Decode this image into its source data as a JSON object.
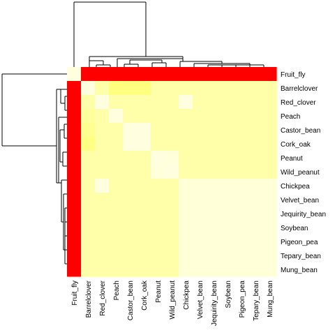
{
  "chart_data": {
    "type": "heatmap",
    "rows": [
      "Fruit_fly",
      "Barrelclover",
      "Red_clover",
      "Peach",
      "Castor_bean",
      "Cork_oak",
      "Peanut",
      "Wild_peanut",
      "Chickpea",
      "Velvet_bean",
      "Jequirity_bean",
      "Soybean",
      "Pigeon_pea",
      "Tepary_bean",
      "Mung_bean"
    ],
    "columns": [
      "Fruit_fly",
      "Barrelclover",
      "Red_clover",
      "Peach",
      "Castor_bean",
      "Cork_oak",
      "Peanut",
      "Wild_peanut",
      "Chickpea",
      "Velvet_bean",
      "Jequirity_bean",
      "Soybean",
      "Pigeon_pea",
      "Tepary_bean",
      "Mung_bean"
    ],
    "colormap": {
      "low": "#ffffe0",
      "mid": "#ffff80",
      "high": "#ff0000",
      "scale": "white-yellow-red"
    },
    "matrix": [
      [
        0.0,
        1.0,
        1.0,
        1.0,
        1.0,
        1.0,
        1.0,
        1.0,
        1.0,
        1.0,
        1.0,
        1.0,
        1.0,
        1.0,
        1.0
      ],
      [
        1.0,
        0.0,
        0.28,
        0.5,
        0.5,
        0.5,
        0.28,
        0.28,
        0.28,
        0.28,
        0.28,
        0.28,
        0.28,
        0.28,
        0.28
      ],
      [
        1.0,
        0.28,
        0.0,
        0.28,
        0.28,
        0.28,
        0.28,
        0.28,
        0.0,
        0.28,
        0.28,
        0.28,
        0.28,
        0.28,
        0.28
      ],
      [
        1.0,
        0.36,
        0.28,
        0.0,
        0.28,
        0.28,
        0.28,
        0.28,
        0.28,
        0.28,
        0.28,
        0.28,
        0.28,
        0.28,
        0.28
      ],
      [
        1.0,
        0.42,
        0.28,
        0.28,
        0.0,
        0.0,
        0.28,
        0.28,
        0.28,
        0.28,
        0.28,
        0.28,
        0.28,
        0.28,
        0.28
      ],
      [
        1.0,
        0.48,
        0.28,
        0.28,
        0.0,
        0.0,
        0.28,
        0.28,
        0.28,
        0.28,
        0.28,
        0.28,
        0.28,
        0.28,
        0.28
      ],
      [
        1.0,
        0.28,
        0.28,
        0.28,
        0.28,
        0.28,
        0.0,
        0.02,
        0.28,
        0.28,
        0.28,
        0.28,
        0.28,
        0.28,
        0.28
      ],
      [
        1.0,
        0.28,
        0.28,
        0.28,
        0.28,
        0.28,
        0.02,
        0.0,
        0.28,
        0.28,
        0.28,
        0.28,
        0.28,
        0.28,
        0.28
      ],
      [
        1.0,
        0.28,
        0.0,
        0.28,
        0.28,
        0.28,
        0.28,
        0.28,
        0.04,
        0.04,
        0.04,
        0.04,
        0.04,
        0.04,
        0.04
      ],
      [
        1.0,
        0.28,
        0.28,
        0.28,
        0.28,
        0.28,
        0.28,
        0.28,
        0.04,
        0.04,
        0.04,
        0.04,
        0.04,
        0.04,
        0.04
      ],
      [
        1.0,
        0.28,
        0.28,
        0.28,
        0.28,
        0.28,
        0.28,
        0.28,
        0.04,
        0.04,
        0.04,
        0.04,
        0.04,
        0.04,
        0.04
      ],
      [
        1.0,
        0.28,
        0.28,
        0.28,
        0.28,
        0.28,
        0.28,
        0.28,
        0.04,
        0.04,
        0.04,
        0.04,
        0.04,
        0.04,
        0.04
      ],
      [
        1.0,
        0.28,
        0.28,
        0.28,
        0.28,
        0.28,
        0.28,
        0.28,
        0.04,
        0.04,
        0.04,
        0.04,
        0.04,
        0.04,
        0.04
      ],
      [
        1.0,
        0.28,
        0.28,
        0.28,
        0.28,
        0.28,
        0.28,
        0.28,
        0.04,
        0.04,
        0.04,
        0.04,
        0.04,
        0.04,
        0.04
      ],
      [
        1.0,
        0.28,
        0.28,
        0.28,
        0.28,
        0.28,
        0.28,
        0.28,
        0.04,
        0.04,
        0.04,
        0.04,
        0.04,
        0.04,
        0.04
      ]
    ],
    "row_dendrogram": true,
    "column_dendrogram": true,
    "title": "",
    "xlabel": "",
    "ylabel": ""
  }
}
